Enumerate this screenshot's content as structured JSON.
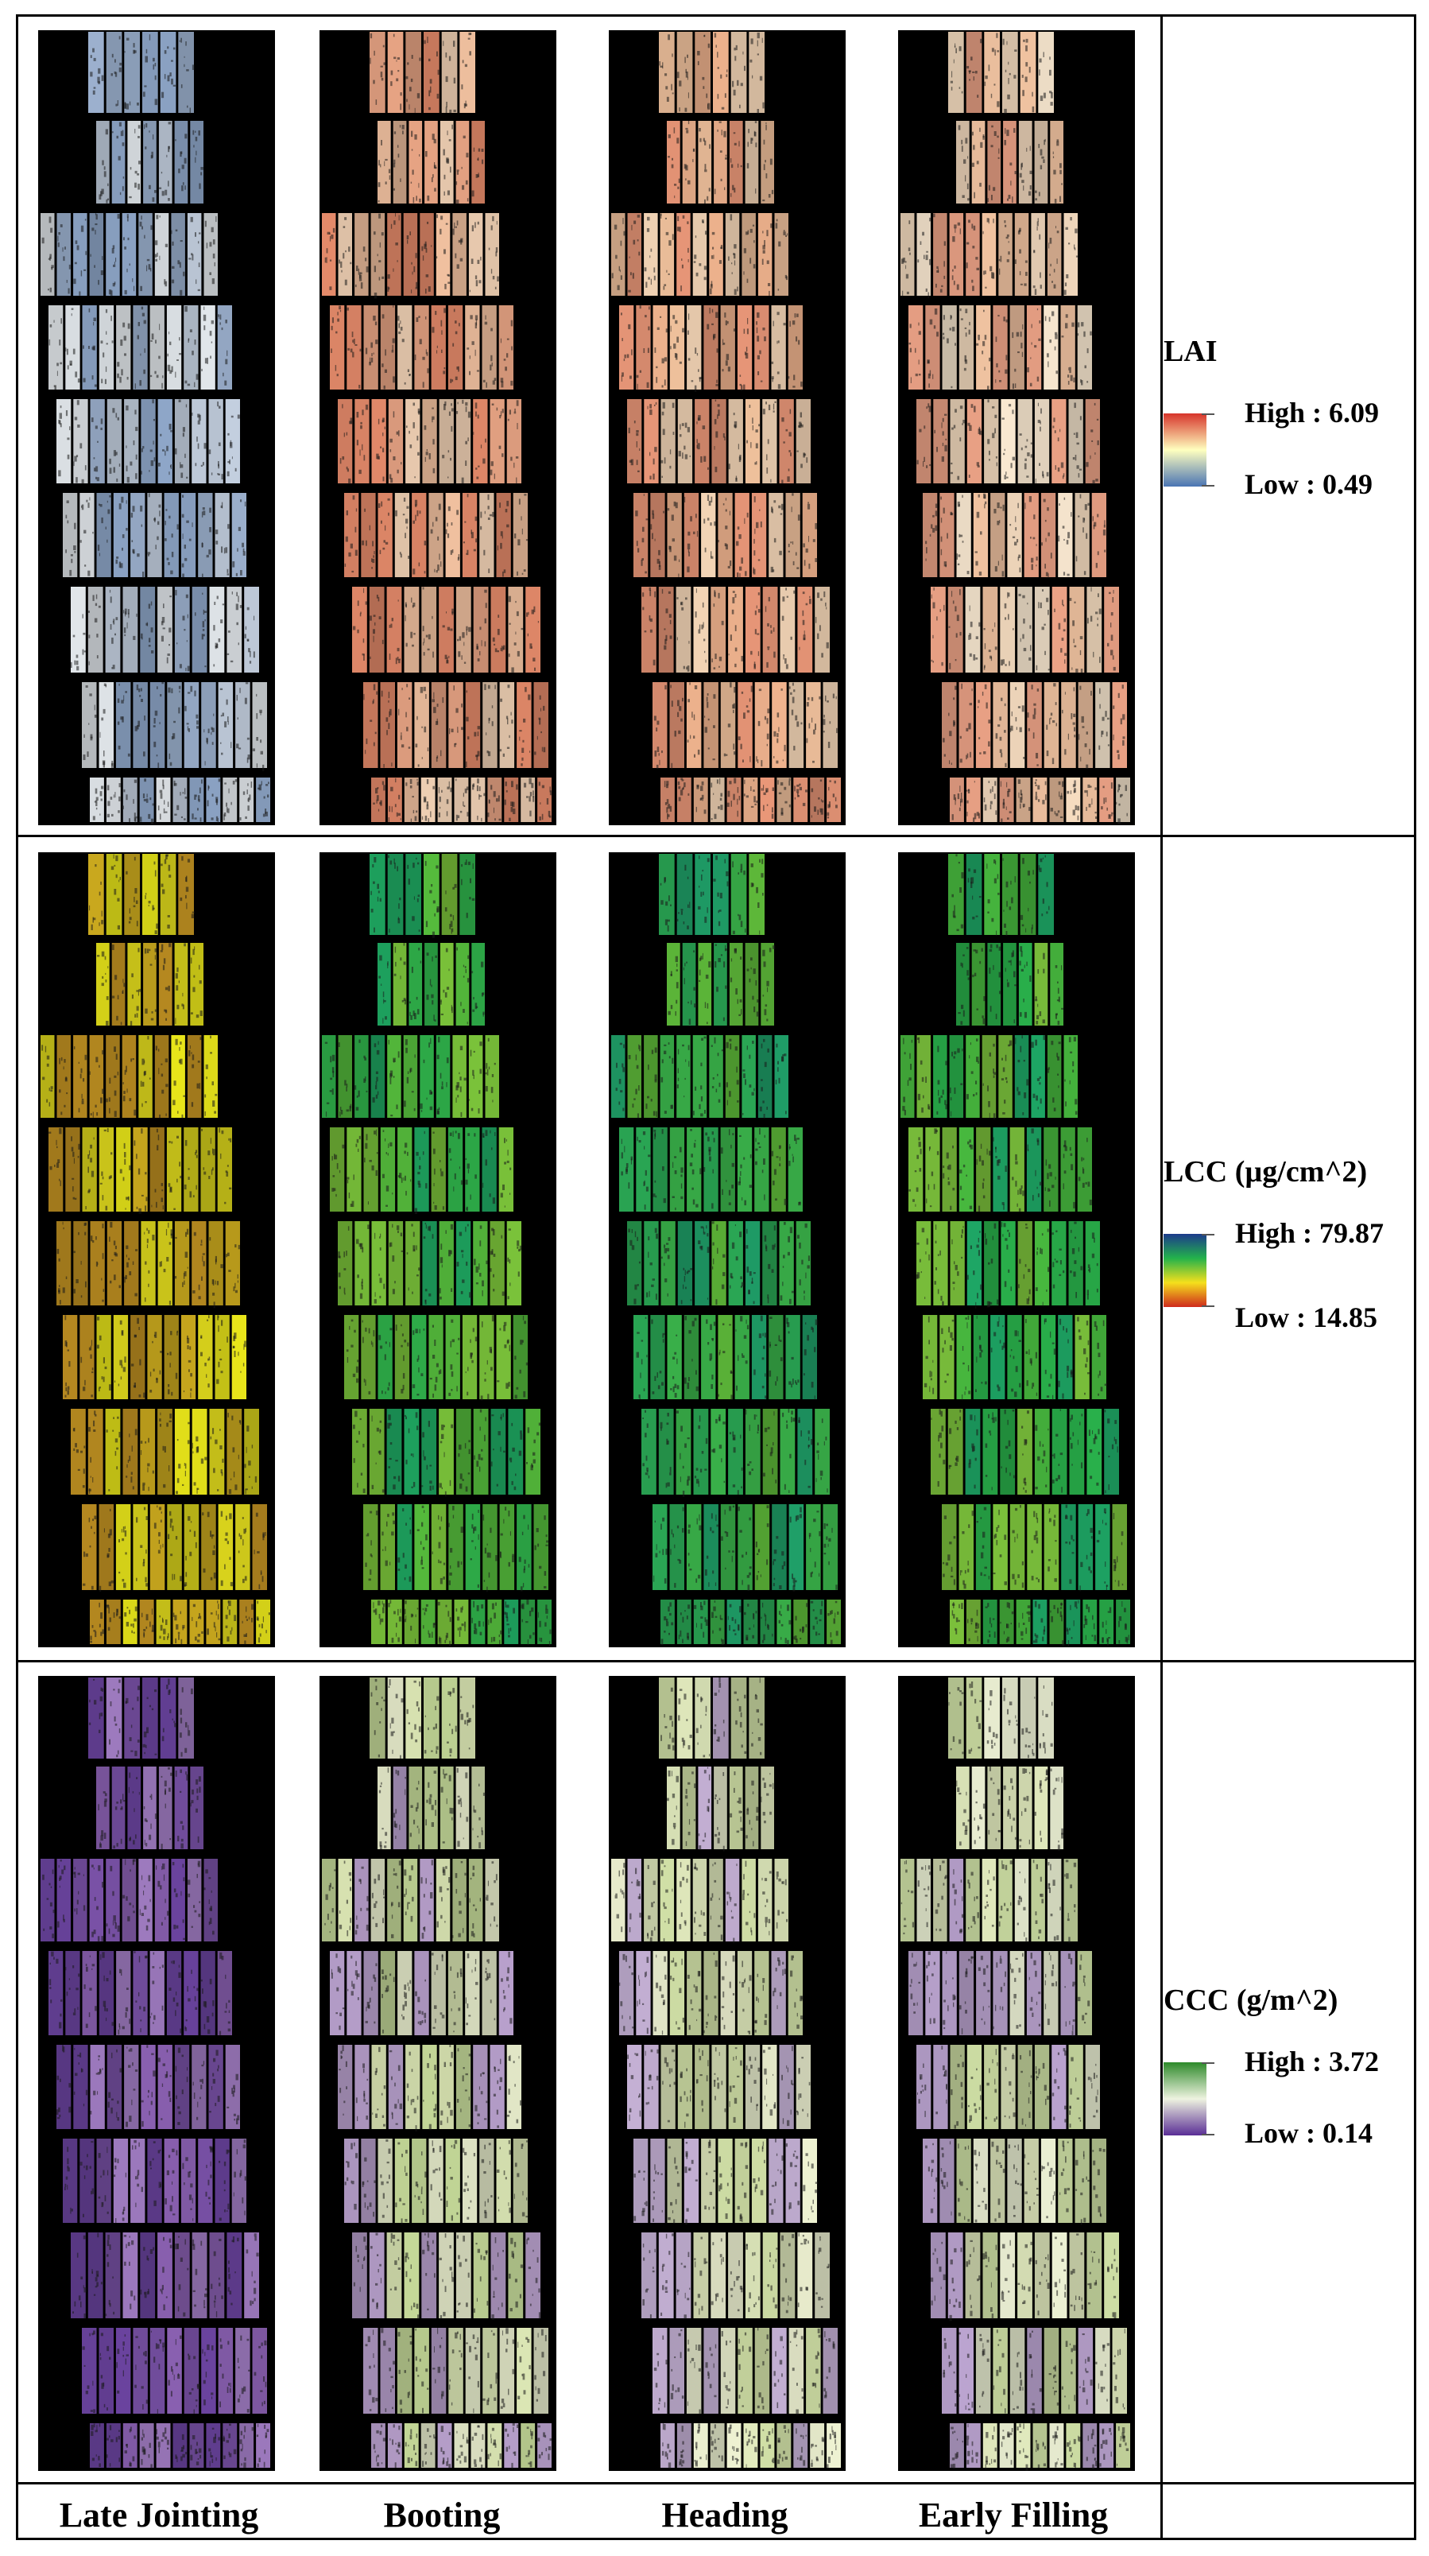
{
  "columns": [
    "Late Jointing",
    "Booting",
    "Heading",
    "Early Filling"
  ],
  "rows": [
    {
      "variable": "LAI",
      "legend_title": "LAI",
      "high_label": "High : 6.09",
      "low_label": "Low : 0.49",
      "high_value": 6.09,
      "low_value": 0.49,
      "gradient": [
        "#d7342b",
        "#ffffbf",
        "#4a74b4"
      ],
      "stage_palettes": [
        [
          "#9fb4d2",
          "#c7d3e3",
          "#8ea6c8",
          "#e6ebef"
        ],
        [
          "#e9a585",
          "#f0c09f",
          "#f5d5b8",
          "#e48a6a"
        ],
        [
          "#efb38e",
          "#f7d8b9",
          "#f1c29d",
          "#e99778"
        ],
        [
          "#f6dcc0",
          "#f9e8d0",
          "#f2c4a2",
          "#eba286"
        ]
      ]
    },
    {
      "variable": "LCC",
      "legend_title": "LCC (µg/cm^2)",
      "high_label": "High : 79.87",
      "low_label": "Low : 14.85",
      "high_value": 79.87,
      "low_value": 14.85,
      "gradient": [
        "#1c3b8c",
        "#23b24b",
        "#f5e01c",
        "#cf2a1c"
      ],
      "stage_palettes": [
        [
          "#d8d21c",
          "#c9a81e",
          "#e8e51a",
          "#b78a20"
        ],
        [
          "#2fb04a",
          "#55bb3c",
          "#1ea560",
          "#7ac23a"
        ],
        [
          "#3ab24a",
          "#1f9f68",
          "#5fbb3a",
          "#2aa855"
        ],
        [
          "#2ab44c",
          "#48ba3f",
          "#1ea866",
          "#7cc23c"
        ]
      ]
    },
    {
      "variable": "CCC",
      "legend_title": "CCC (g/m^2)",
      "high_label": "High : 3.72",
      "low_label": "Low : 0.14",
      "high_value": 3.72,
      "low_value": 0.14,
      "gradient": [
        "#2e8a2a",
        "#eef3e0",
        "#5a2e96"
      ],
      "stage_palettes": [
        [
          "#8c62b4",
          "#7a52a8",
          "#a07cc2",
          "#6b44a0"
        ],
        [
          "#dbe6b4",
          "#c4d898",
          "#e8edcc",
          "#b8a0cc"
        ],
        [
          "#e2ebbe",
          "#eef2d2",
          "#d0dfa6",
          "#c4b0d4"
        ],
        [
          "#e3ecbf",
          "#eef3d6",
          "#cddea4",
          "#bba4d0"
        ]
      ]
    }
  ],
  "colors": {
    "background": "#000000",
    "grid": "#000000"
  }
}
